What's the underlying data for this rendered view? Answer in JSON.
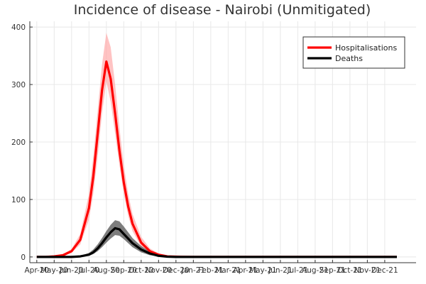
{
  "chart_data": {
    "type": "line",
    "title": "Incidence of disease - Nairobi (Unmitigated)",
    "xlabel": "",
    "ylabel": "",
    "x_tick_labels": [
      "Apr-20",
      "May-20",
      "Jun-20",
      "Jul-20",
      "Aug-20",
      "Sep-20",
      "Oct-20",
      "Nov-20",
      "Dec-20",
      "Jan-21",
      "Feb-21",
      "Mar-21",
      "Apr-21",
      "May-21",
      "Jun-21",
      "Jul-21",
      "Aug-21",
      "Sep-21",
      "Oct-21",
      "Nov-21",
      "Dec-21"
    ],
    "y_ticks": [
      0,
      100,
      200,
      300,
      400
    ],
    "ylim": [
      -10,
      410
    ],
    "grid": true,
    "legend_position": "top-right",
    "x_months": [
      0,
      0.5,
      1,
      1.5,
      2,
      2.5,
      3,
      3.25,
      3.5,
      3.75,
      4,
      4.25,
      4.5,
      4.75,
      5,
      5.25,
      5.5,
      6,
      6.5,
      7,
      7.5,
      8,
      9,
      10,
      12,
      15,
      18,
      20.7
    ],
    "series": [
      {
        "name": "Hospitalisations",
        "color": "#ff0000",
        "band_color": "#ffaaaa",
        "values": [
          0,
          0,
          1,
          3,
          10,
          30,
          85,
          140,
          215,
          290,
          340,
          310,
          250,
          185,
          130,
          88,
          58,
          25,
          10,
          4,
          1,
          0.5,
          0,
          0,
          0,
          0,
          0,
          0
        ],
        "lower": [
          0,
          0,
          0,
          2,
          7,
          22,
          65,
          110,
          175,
          250,
          305,
          270,
          215,
          160,
          110,
          72,
          45,
          18,
          6,
          2,
          0,
          0,
          0,
          0,
          0,
          0,
          0,
          0
        ],
        "upper": [
          0,
          0,
          2,
          5,
          14,
          40,
          110,
          175,
          255,
          335,
          390,
          365,
          300,
          225,
          160,
          110,
          75,
          35,
          15,
          6,
          2,
          1,
          0,
          0,
          0,
          0,
          0,
          0
        ]
      },
      {
        "name": "Deaths",
        "color": "#000000",
        "band_color": "#666666",
        "values": [
          0,
          0,
          0,
          0,
          0,
          1,
          4,
          8,
          15,
          24,
          34,
          43,
          50,
          48,
          40,
          32,
          24,
          13,
          6,
          2,
          0.5,
          0,
          0,
          0,
          0,
          0,
          0,
          0
        ],
        "lower": [
          0,
          0,
          0,
          0,
          0,
          0,
          2,
          5,
          10,
          17,
          25,
          32,
          38,
          37,
          31,
          24,
          17,
          8,
          3,
          1,
          0,
          0,
          0,
          0,
          0,
          0,
          0,
          0
        ],
        "upper": [
          0,
          0,
          0,
          0,
          1,
          2,
          7,
          13,
          22,
          33,
          45,
          56,
          64,
          62,
          53,
          43,
          33,
          19,
          9,
          3,
          1,
          0,
          0,
          0,
          0,
          0,
          0,
          0
        ]
      }
    ]
  }
}
